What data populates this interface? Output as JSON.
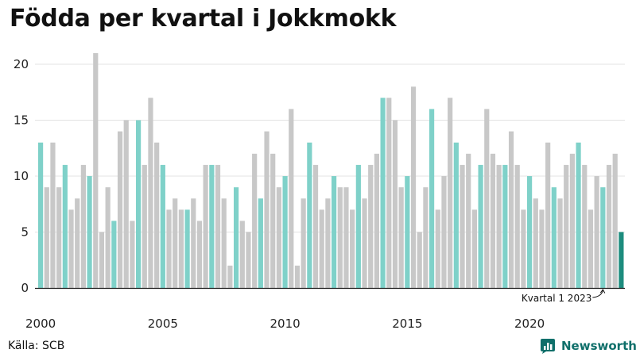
{
  "title": "Födda per kvartal i Jokkmokk",
  "source": "Källa: SCB",
  "brand": {
    "name": "Newsworthy",
    "icon": "bar-chart-logo-icon"
  },
  "colors": {
    "q1": "#7fd1c9",
    "other": "#c8c8c8",
    "latest": "#1d8c7e",
    "grid": "#e3e3e3",
    "axis": "#222222",
    "brand": "#0f6f6a"
  },
  "chart_data": {
    "type": "bar",
    "title": "Födda per kvartal i Jokkmokk",
    "xlabel": "",
    "ylabel": "",
    "ylim": [
      0,
      22
    ],
    "yticks": [
      0,
      5,
      10,
      15,
      20
    ],
    "xtick_labels": [
      "2000",
      "2005",
      "2010",
      "2015",
      "2020"
    ],
    "grid": true,
    "start": {
      "year": 2000,
      "quarter": 1
    },
    "values": [
      13,
      9,
      13,
      9,
      11,
      7,
      8,
      11,
      10,
      21,
      5,
      9,
      6,
      14,
      15,
      6,
      15,
      11,
      17,
      13,
      11,
      7,
      8,
      7,
      7,
      8,
      6,
      11,
      11,
      11,
      8,
      2,
      9,
      6,
      5,
      12,
      8,
      14,
      12,
      9,
      10,
      16,
      2,
      8,
      13,
      11,
      7,
      8,
      10,
      9,
      9,
      7,
      11,
      8,
      11,
      12,
      17,
      17,
      15,
      9,
      10,
      18,
      5,
      9,
      16,
      7,
      10,
      17,
      13,
      11,
      12,
      7,
      11,
      16,
      12,
      11,
      11,
      14,
      11,
      7,
      10,
      8,
      7,
      13,
      9,
      8,
      11,
      12,
      13,
      11,
      7,
      10,
      9,
      11,
      12,
      5
    ],
    "annotation": {
      "text": "Kvartal 1 2023"
    }
  }
}
